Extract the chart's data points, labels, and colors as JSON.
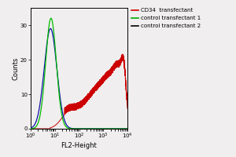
{
  "title": "",
  "xlabel": "FL2-Height",
  "ylabel": "Counts",
  "ylim": [
    0,
    35
  ],
  "yticks": [
    0,
    10,
    20,
    30
  ],
  "background_color": "#f0eeee",
  "legend_entries": [
    {
      "label": "CD34  transfectant",
      "color": "#cc0000"
    },
    {
      "label": "control transfectant 1",
      "color": "#00aa00"
    },
    {
      "label": "control transfectant 2",
      "color": "#000000"
    }
  ],
  "plot_curve_blue": "#1010aa",
  "plot_curve_green": "#00bb00",
  "plot_curve_red": "#cc0000",
  "fig_width": 3.0,
  "fig_height": 2.0,
  "dpi": 100
}
